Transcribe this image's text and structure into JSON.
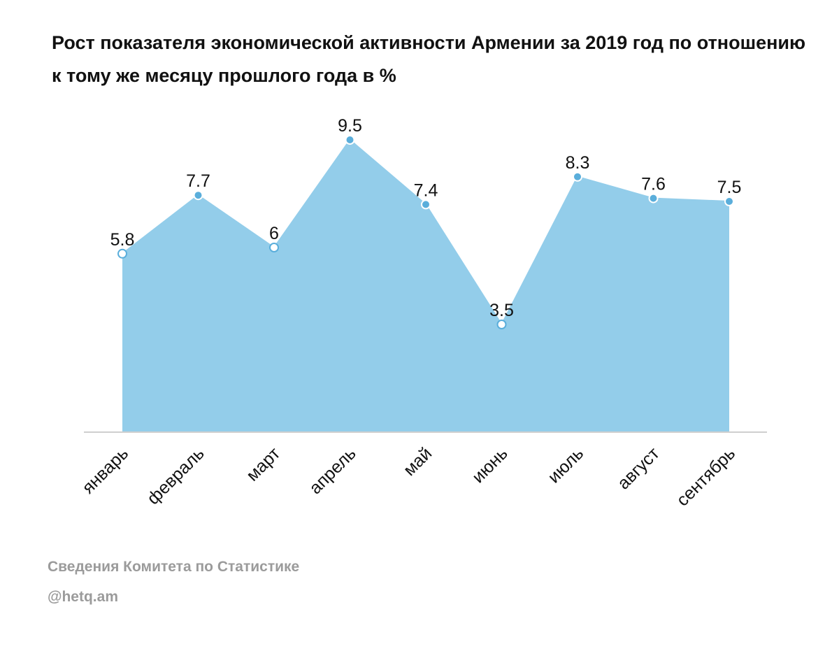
{
  "title": "Рост показателя экономической активности Армении за 2019 год по отношению к тому же месяцу прошлого года в %",
  "source_line1": "Сведения Комитета по Статистике",
  "source_line2": "@hetq.am",
  "colors": {
    "area_fill": "#93cdea",
    "marker_fill": "#5aaedb",
    "marker_hollow": "#ffffff",
    "baseline": "#cfcfcf",
    "text": "#111111",
    "source_text": "#9b9b9b"
  },
  "chart_data": {
    "type": "area",
    "categories": [
      "январь",
      "февраль",
      "март",
      "апрель",
      "май",
      "июнь",
      "июль",
      "август",
      "сентябрь"
    ],
    "values": [
      5.8,
      7.7,
      6,
      9.5,
      7.4,
      3.5,
      8.3,
      7.6,
      7.5
    ],
    "value_labels": [
      "5.8",
      "7.7",
      "6",
      "9.5",
      "7.4",
      "3.5",
      "8.3",
      "7.6",
      "7.5"
    ],
    "hollow_markers": [
      true,
      false,
      true,
      false,
      false,
      true,
      false,
      false,
      false
    ],
    "ylim": [
      0,
      9.5
    ],
    "grid": false,
    "legend": "none",
    "xlabel": "",
    "ylabel": ""
  }
}
